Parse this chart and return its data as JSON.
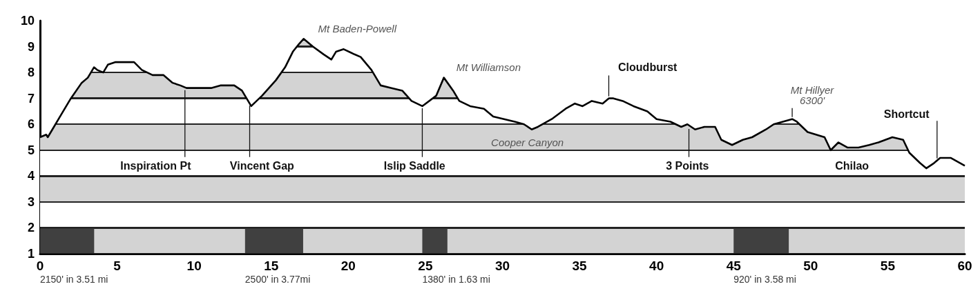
{
  "chart_data": {
    "type": "area",
    "x": [
      0,
      0.4,
      0.5,
      0.8,
      1.3,
      2.0,
      2.7,
      3.1,
      3.5,
      3.7,
      4.1,
      4.4,
      4.9,
      5.3,
      5.7,
      6.1,
      6.6,
      7.3,
      8.0,
      8.6,
      9.1,
      9.5,
      10.2,
      10.6,
      11.1,
      11.7,
      12.6,
      13.1,
      13.5,
      13.7,
      14.4,
      15.3,
      15.9,
      16.4,
      16.8,
      17.1,
      17.7,
      18.4,
      18.9,
      19.2,
      19.7,
      20.4,
      20.8,
      21.5,
      22.1,
      22.8,
      23.5,
      24.1,
      24.8,
      25.7,
      26.2,
      26.8,
      27.2,
      27.9,
      28.8,
      29.4,
      30.1,
      30.8,
      31.4,
      31.9,
      32.3,
      33.2,
      34.1,
      34.7,
      35.2,
      35.8,
      36.5,
      36.9,
      37.2,
      37.8,
      38.5,
      39.4,
      40.0,
      40.9,
      41.6,
      42.0,
      42.5,
      43.1,
      43.8,
      44.2,
      44.9,
      45.6,
      46.2,
      47.1,
      47.6,
      48.8,
      49.1,
      49.8,
      50.9,
      51.3,
      51.8,
      52.4,
      53.1,
      53.8,
      54.4,
      55.3,
      56.0,
      56.4,
      57.1,
      57.5,
      58.0,
      58.4,
      59.1,
      59.7,
      60
    ],
    "series": [
      {
        "color": "#000000",
        "values": [
          5.5,
          5.6,
          5.5,
          5.8,
          6.3,
          7.0,
          7.6,
          7.8,
          8.2,
          8.1,
          8.0,
          8.3,
          8.4,
          8.4,
          8.4,
          8.4,
          8.1,
          7.9,
          7.9,
          7.6,
          7.5,
          7.4,
          7.4,
          7.4,
          7.4,
          7.5,
          7.5,
          7.3,
          6.9,
          6.7,
          7.1,
          7.7,
          8.2,
          8.8,
          9.1,
          9.3,
          9.0,
          8.7,
          8.5,
          8.8,
          8.9,
          8.7,
          8.6,
          8.1,
          7.5,
          7.4,
          7.3,
          6.9,
          6.7,
          7.1,
          7.8,
          7.3,
          6.9,
          6.7,
          6.6,
          6.3,
          6.2,
          6.1,
          6.0,
          5.8,
          5.9,
          6.2,
          6.6,
          6.8,
          6.7,
          6.9,
          6.8,
          7.0,
          7.0,
          6.9,
          6.7,
          6.5,
          6.2,
          6.1,
          5.9,
          6.0,
          5.8,
          5.9,
          5.9,
          5.4,
          5.2,
          5.4,
          5.5,
          5.8,
          6.0,
          6.2,
          6.1,
          5.7,
          5.5,
          5.0,
          5.3,
          5.1,
          5.1,
          5.2,
          5.3,
          5.5,
          5.4,
          4.9,
          4.5,
          4.3,
          4.5,
          4.7,
          4.7,
          4.5,
          4.4
        ]
      }
    ],
    "xlim": [
      0,
      60
    ],
    "xticks": [
      0,
      5,
      10,
      15,
      20,
      25,
      30,
      35,
      40,
      45,
      50,
      55,
      60
    ],
    "ylim": [
      1,
      10
    ],
    "yticks": [
      1,
      2,
      3,
      4,
      5,
      6,
      7,
      8,
      9,
      10
    ],
    "grid": false,
    "line_style": "solid",
    "marker": "none",
    "bands": [
      {
        "axis": "x",
        "from": 0,
        "to": 3.51,
        "label": "2150' in 3.51 mi",
        "color": "#404040"
      },
      {
        "axis": "x",
        "from": 13.3,
        "to": 17.07,
        "label": "2500' in 3.77mi",
        "color": "#404040"
      },
      {
        "axis": "x",
        "from": 24.8,
        "to": 26.43,
        "label": "1380' in 1.63 mi",
        "color": "#404040"
      },
      {
        "axis": "x",
        "from": 45.0,
        "to": 48.58,
        "label": "920' in 3.58 mi",
        "color": "#404040"
      }
    ],
    "annotations": [
      {
        "text": "Inspiration Pt",
        "x": 9.4,
        "y": 7.4
      },
      {
        "text": "Vincent Gap",
        "x": 13.6,
        "y": 6.8
      },
      {
        "text": "Islip Saddle",
        "x": 24.8,
        "y": 6.7
      },
      {
        "text": "3 Points",
        "x": 42.1,
        "y": 5.9
      },
      "Chilao",
      "Mt Baden-Powell",
      "Mt Williamson",
      {
        "text": "Cloudburst",
        "x": 36.9,
        "y": 7.0
      },
      "Cooper Canyon",
      {
        "text": "Mt Hillyer\n6300'",
        "x": 48.8,
        "y": 6.2
      },
      {
        "text": "Shortcut",
        "x": 58.2,
        "y": 4.6
      }
    ]
  }
}
